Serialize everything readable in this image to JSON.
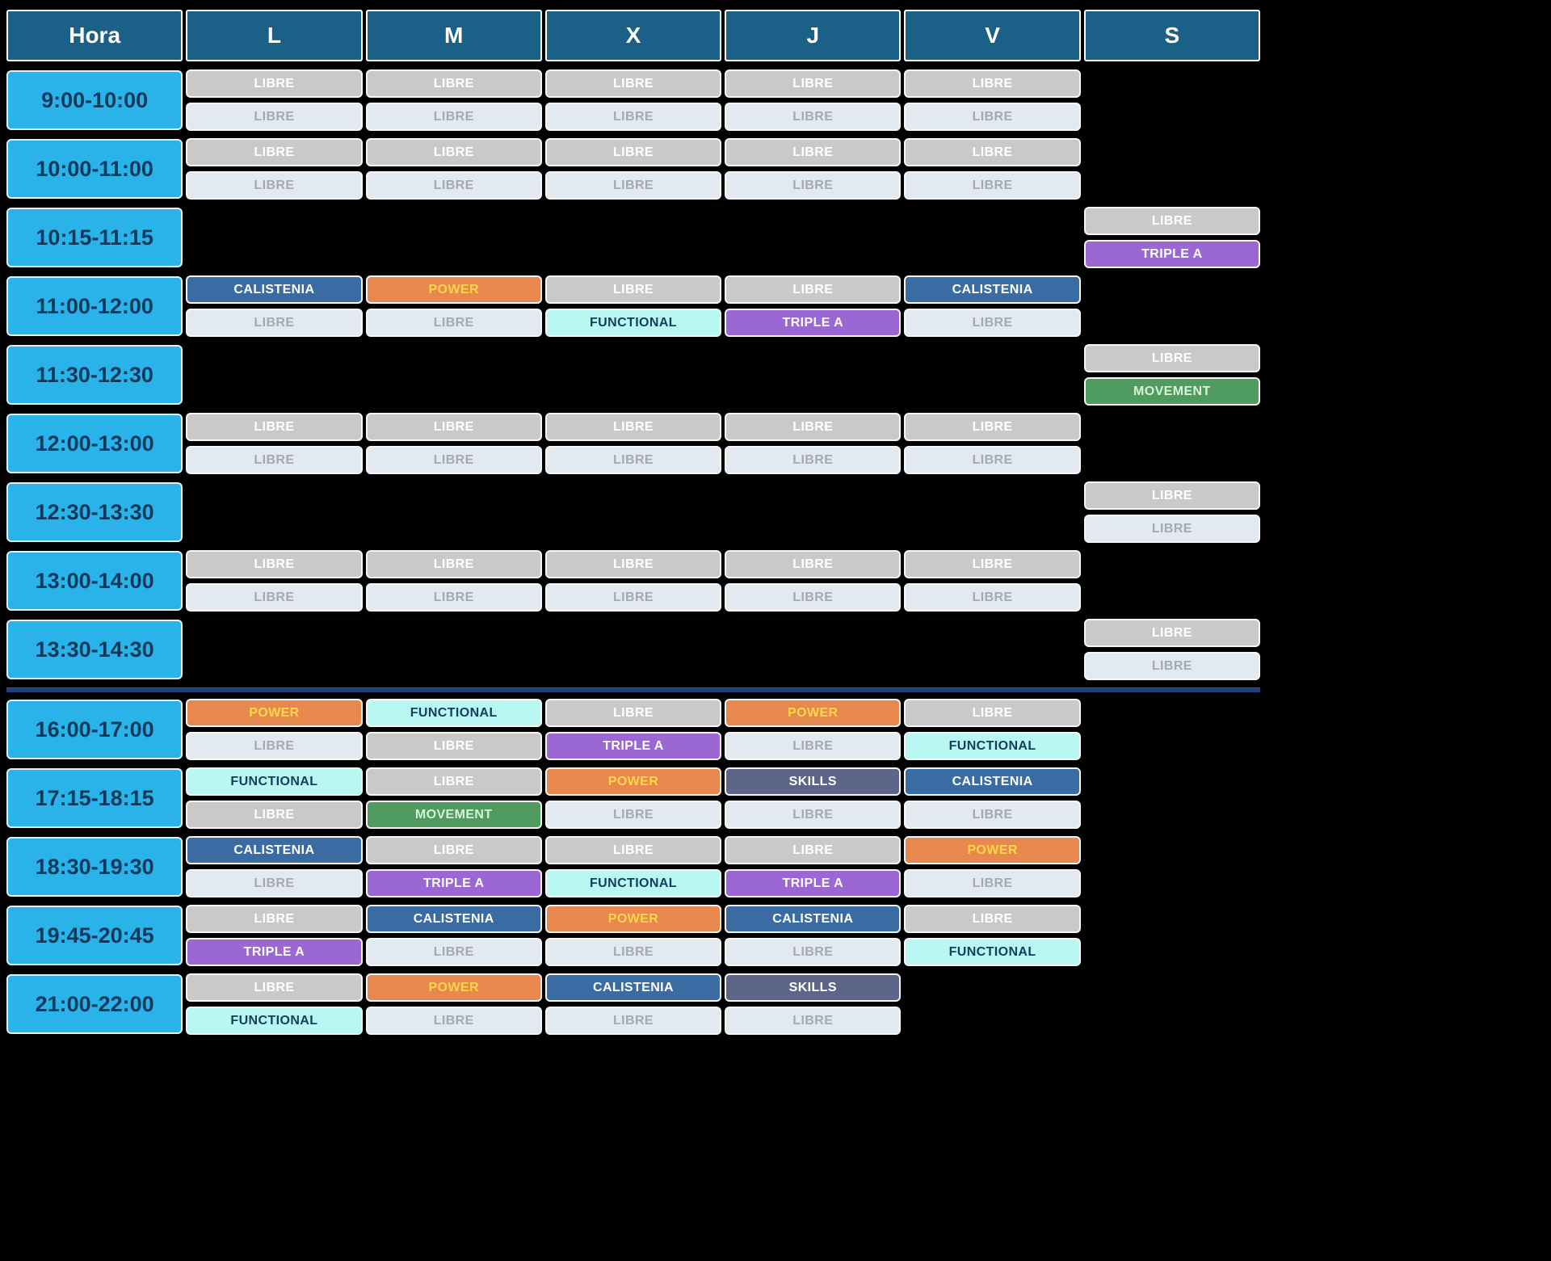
{
  "day_keys": [
    "L",
    "M",
    "X",
    "J",
    "V",
    "S"
  ],
  "header": {
    "columns": [
      "Hora",
      "L",
      "M",
      "X",
      "J",
      "V",
      "S"
    ],
    "bg": "#1b6086",
    "fg": "#ffffff"
  },
  "time_column": {
    "bg": "#29b3e8",
    "fg": "#0d3a5c"
  },
  "types": {
    "libre_dark": {
      "label": "LIBRE",
      "bg": "#c9c9c9",
      "fg": "#ffffff"
    },
    "libre_light": {
      "label": "LIBRE",
      "bg": "#e3e9f0",
      "fg": "#a4aab2"
    },
    "calistenia": {
      "label": "CALISTENIA",
      "bg": "#3a6ca3",
      "fg": "#ffffff"
    },
    "power": {
      "label": "POWER",
      "bg": "#e8884f",
      "fg": "#ffd84a"
    },
    "functional": {
      "label": "FUNCTIONAL",
      "bg": "#b9f7f2",
      "fg": "#123d5e"
    },
    "triple_a": {
      "label": "TRIPLE A",
      "bg": "#9a67d3",
      "fg": "#ffffff"
    },
    "movement": {
      "label": "MOVEMENT",
      "bg": "#4f9b60",
      "fg": "#d8f3d8"
    },
    "skills": {
      "label": "SKILLS",
      "bg": "#5d6588",
      "fg": "#ffffff"
    }
  },
  "rows": [
    {
      "time": "9:00-10:00",
      "cells": {
        "L": [
          "libre_dark",
          "libre_light"
        ],
        "M": [
          "libre_dark",
          "libre_light"
        ],
        "X": [
          "libre_dark",
          "libre_light"
        ],
        "J": [
          "libre_dark",
          "libre_light"
        ],
        "V": [
          "libre_dark",
          "libre_light"
        ],
        "S": null
      }
    },
    {
      "time": "10:00-11:00",
      "cells": {
        "L": [
          "libre_dark",
          "libre_light"
        ],
        "M": [
          "libre_dark",
          "libre_light"
        ],
        "X": [
          "libre_dark",
          "libre_light"
        ],
        "J": [
          "libre_dark",
          "libre_light"
        ],
        "V": [
          "libre_dark",
          "libre_light"
        ],
        "S": null
      }
    },
    {
      "time": "10:15-11:15",
      "cells": {
        "L": null,
        "M": null,
        "X": null,
        "J": null,
        "V": null,
        "S": [
          "libre_dark",
          "triple_a"
        ]
      }
    },
    {
      "time": "11:00-12:00",
      "cells": {
        "L": [
          "calistenia",
          "libre_light"
        ],
        "M": [
          "power",
          "libre_light"
        ],
        "X": [
          "libre_dark",
          "functional"
        ],
        "J": [
          "libre_dark",
          "triple_a"
        ],
        "V": [
          "calistenia",
          "libre_light"
        ],
        "S": null
      }
    },
    {
      "time": "11:30-12:30",
      "cells": {
        "L": null,
        "M": null,
        "X": null,
        "J": null,
        "V": null,
        "S": [
          "libre_dark",
          "movement"
        ]
      }
    },
    {
      "time": "12:00-13:00",
      "cells": {
        "L": [
          "libre_dark",
          "libre_light"
        ],
        "M": [
          "libre_dark",
          "libre_light"
        ],
        "X": [
          "libre_dark",
          "libre_light"
        ],
        "J": [
          "libre_dark",
          "libre_light"
        ],
        "V": [
          "libre_dark",
          "libre_light"
        ],
        "S": null
      }
    },
    {
      "time": "12:30-13:30",
      "cells": {
        "L": null,
        "M": null,
        "X": null,
        "J": null,
        "V": null,
        "S": [
          "libre_dark",
          "libre_light"
        ]
      }
    },
    {
      "time": "13:00-14:00",
      "cells": {
        "L": [
          "libre_dark",
          "libre_light"
        ],
        "M": [
          "libre_dark",
          "libre_light"
        ],
        "X": [
          "libre_dark",
          "libre_light"
        ],
        "J": [
          "libre_dark",
          "libre_light"
        ],
        "V": [
          "libre_dark",
          "libre_light"
        ],
        "S": null
      }
    },
    {
      "time": "13:30-14:30",
      "cells": {
        "L": null,
        "M": null,
        "X": null,
        "J": null,
        "V": null,
        "S": [
          "libre_dark",
          "libre_light"
        ]
      },
      "divider_after": true
    },
    {
      "time": "16:00-17:00",
      "cells": {
        "L": [
          "power",
          "libre_light"
        ],
        "M": [
          "functional",
          "libre_dark"
        ],
        "X": [
          "libre_dark",
          "triple_a"
        ],
        "J": [
          "power",
          "libre_light"
        ],
        "V": [
          "libre_dark",
          "functional"
        ],
        "S": null
      }
    },
    {
      "time": "17:15-18:15",
      "cells": {
        "L": [
          "functional",
          "libre_dark"
        ],
        "M": [
          "libre_dark",
          "movement"
        ],
        "X": [
          "power",
          "libre_light"
        ],
        "J": [
          "skills",
          "libre_light"
        ],
        "V": [
          "calistenia",
          "libre_light"
        ],
        "S": null
      }
    },
    {
      "time": "18:30-19:30",
      "cells": {
        "L": [
          "calistenia",
          "libre_light"
        ],
        "M": [
          "libre_dark",
          "triple_a"
        ],
        "X": [
          "libre_dark",
          "functional"
        ],
        "J": [
          "libre_dark",
          "triple_a"
        ],
        "V": [
          "power",
          "libre_light"
        ],
        "S": null
      }
    },
    {
      "time": "19:45-20:45",
      "cells": {
        "L": [
          "libre_dark",
          "triple_a"
        ],
        "M": [
          "calistenia",
          "libre_light"
        ],
        "X": [
          "power",
          "libre_light"
        ],
        "J": [
          "calistenia",
          "libre_light"
        ],
        "V": [
          "libre_dark",
          "functional"
        ],
        "S": null
      }
    },
    {
      "time": "21:00-22:00",
      "cells": {
        "L": [
          "libre_dark",
          "functional"
        ],
        "M": [
          "power",
          "libre_light"
        ],
        "X": [
          "calistenia",
          "libre_light"
        ],
        "J": [
          "skills",
          "libre_light"
        ],
        "V": null,
        "S": null
      }
    }
  ]
}
